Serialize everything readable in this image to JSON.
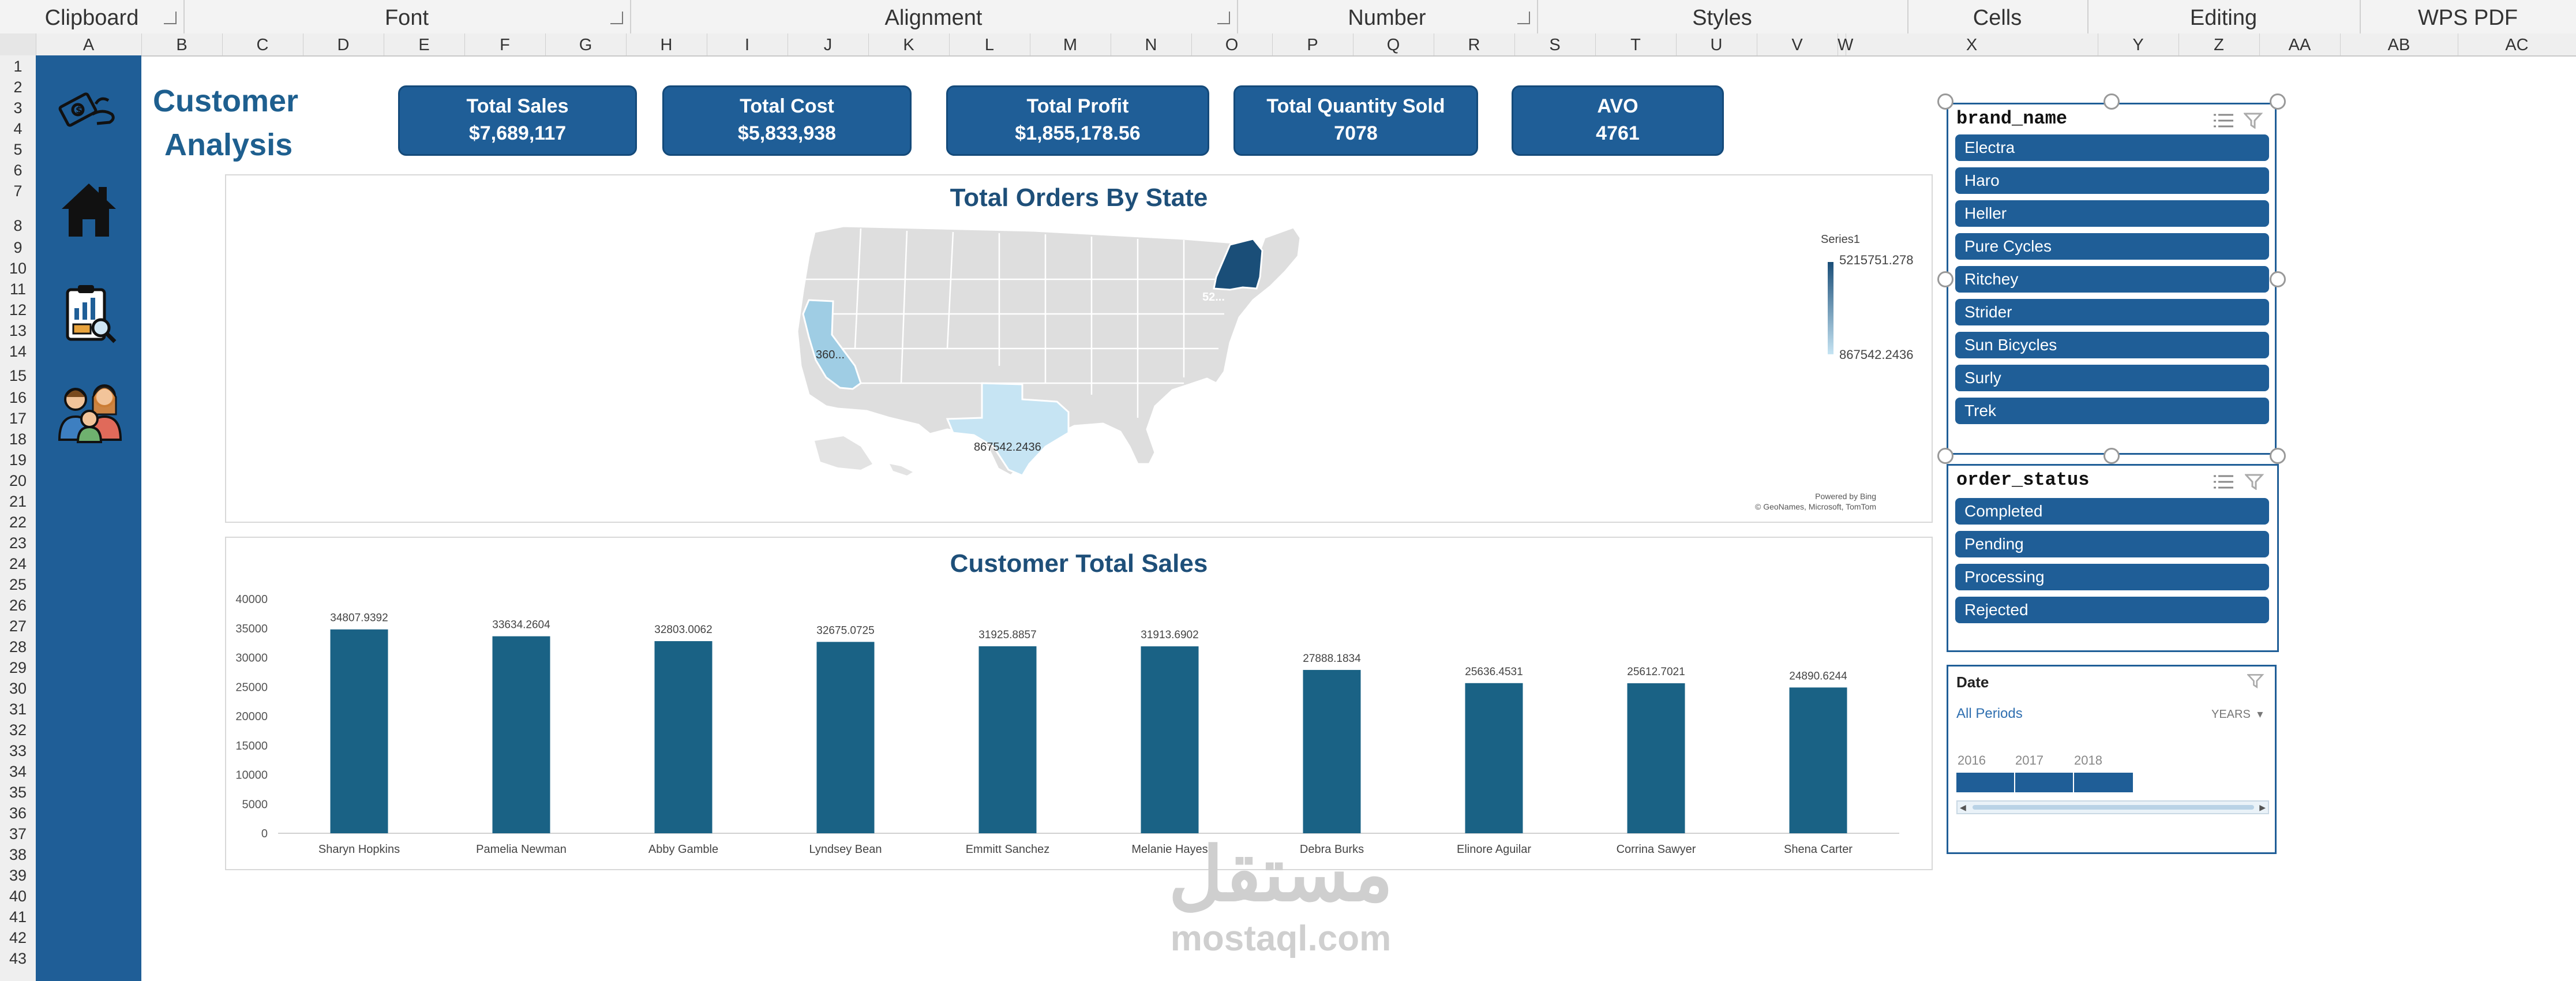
{
  "ribbon": {
    "groups": [
      "Clipboard",
      "Font",
      "Alignment",
      "Number",
      "Styles",
      "Cells",
      "Editing",
      "WPS PDF"
    ]
  },
  "columns": [
    "A",
    "B",
    "C",
    "D",
    "E",
    "F",
    "G",
    "H",
    "I",
    "J",
    "K",
    "L",
    "M",
    "N",
    "O",
    "P",
    "Q",
    "R",
    "S",
    "T",
    "U",
    "V",
    "W",
    "X",
    "Y",
    "Z",
    "AA",
    "AB",
    "AC"
  ],
  "rows": [
    "1",
    "2",
    "3",
    "4",
    "5",
    "6",
    "7",
    "8",
    "9",
    "10",
    "11",
    "12",
    "13",
    "14",
    "15",
    "16",
    "17",
    "18",
    "19",
    "20",
    "21",
    "22",
    "23",
    "24",
    "25",
    "26",
    "27",
    "28",
    "29",
    "30",
    "31",
    "32",
    "33",
    "34",
    "35",
    "36",
    "37",
    "38",
    "39",
    "40",
    "41",
    "42",
    "43"
  ],
  "sidebar": {
    "icons": [
      "money-icon",
      "home-icon",
      "report-icon",
      "customers-icon"
    ]
  },
  "dashboard": {
    "title_line1": "Customer",
    "title_line2": "Analysis",
    "kpis": [
      {
        "label": "Total Sales",
        "value": "$7,689,117"
      },
      {
        "label": "Total Cost",
        "value": "$5,833,938"
      },
      {
        "label": "Total Profit",
        "value": "$1,855,178.56"
      },
      {
        "label": "Total Quantity Sold",
        "value": "7078"
      },
      {
        "label": "AVO",
        "value": "4761"
      }
    ]
  },
  "map": {
    "title": "Total Orders By State",
    "legend_series": "Series1",
    "legend_max": "5215751.278",
    "legend_min": "867542.2436",
    "label_ny": "52...",
    "label_ca": "360...",
    "label_tx": "867542.2436",
    "credit_line1": "Powered by Bing",
    "credit_line2": "© GeoNames, Microsoft, TomTom",
    "colors": {
      "land": "#dcdcdc",
      "ny": "#1a4e78",
      "ca": "#9fcde4",
      "tx": "#c6e4f3"
    }
  },
  "chart_title": "Customer Total Sales",
  "chart_data": {
    "type": "bar",
    "title": "Customer Total Sales",
    "categories": [
      "Sharyn Hopkins",
      "Pamelia Newman",
      "Abby Gamble",
      "Lyndsey Bean",
      "Emmitt Sanchez",
      "Melanie Hayes",
      "Debra Burks",
      "Elinore Aguilar",
      "Corrina Sawyer",
      "Shena Carter"
    ],
    "values": [
      34807.9392,
      33634.2604,
      32803.0062,
      32675.0725,
      31925.8857,
      31913.6902,
      27888.1834,
      25636.4531,
      25612.7021,
      24890.6244
    ],
    "value_labels": [
      "34807.9392",
      "33634.2604",
      "32803.0062",
      "32675.0725",
      "31925.8857",
      "31913.6902",
      "27888.1834",
      "25636.4531",
      "25612.7021",
      "24890.6244"
    ],
    "yticks": [
      "0",
      "5000",
      "10000",
      "15000",
      "20000",
      "25000",
      "30000",
      "35000",
      "40000"
    ],
    "ylim": [
      0,
      40000
    ],
    "xlabel": "",
    "ylabel": "",
    "color": "#1a6285",
    "grid": false
  },
  "slicers": {
    "brand": {
      "title": "brand_name",
      "items": [
        "Electra",
        "Haro",
        "Heller",
        "Pure Cycles",
        "Ritchey",
        "Strider",
        "Sun Bicycles",
        "Surly",
        "Trek"
      ]
    },
    "order_status": {
      "title": "order_status",
      "items": [
        "Completed",
        "Pending",
        "Processing",
        "Rejected"
      ]
    },
    "date": {
      "title": "Date",
      "period": "All Periods",
      "level": "YEARS",
      "years": [
        "2016",
        "2017",
        "2018"
      ]
    }
  },
  "watermark": {
    "arabic": "مستقل",
    "latin": "mostaql.com"
  }
}
